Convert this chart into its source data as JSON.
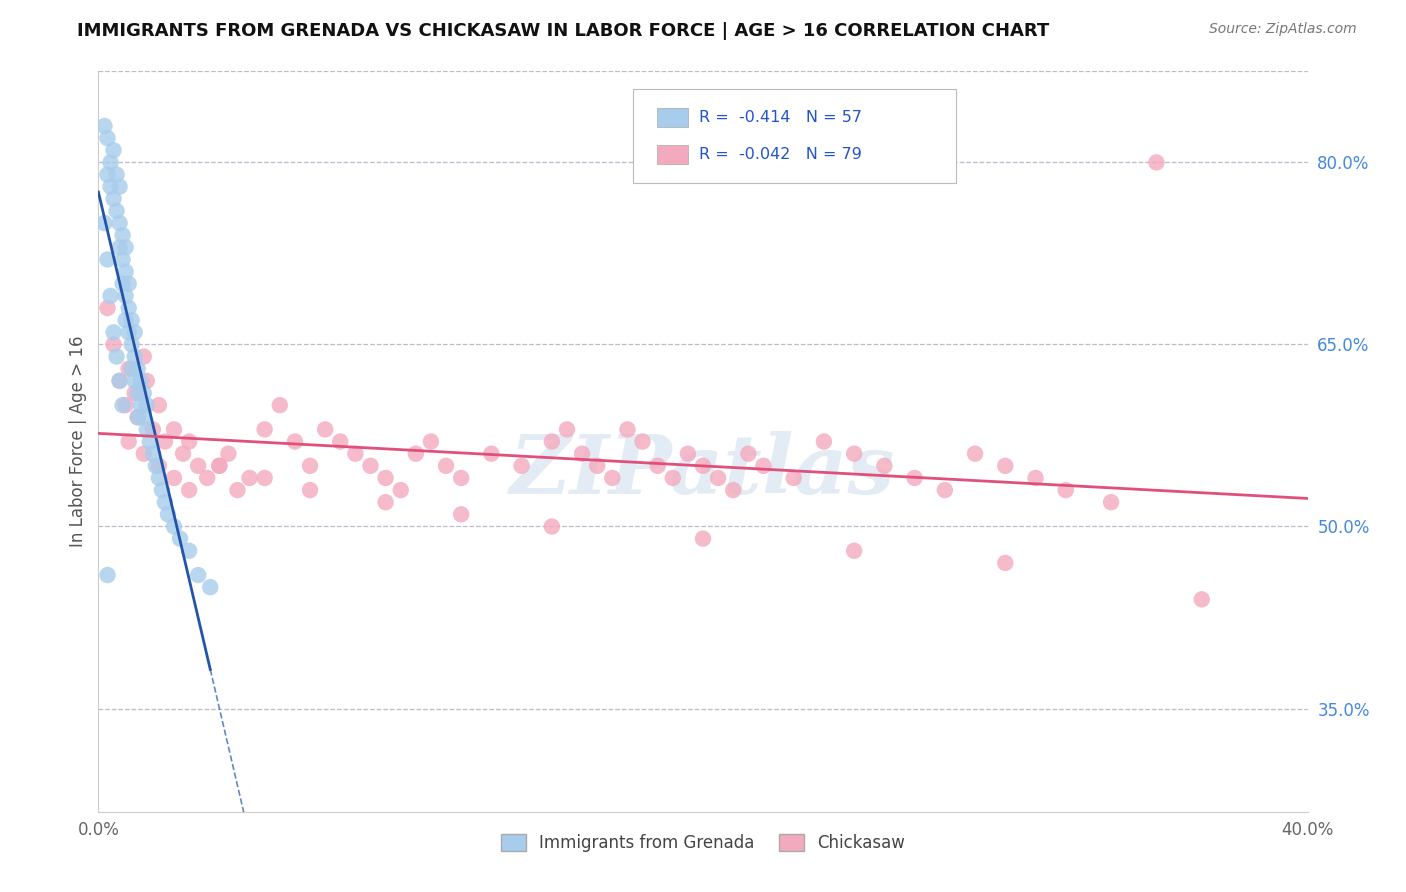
{
  "title": "IMMIGRANTS FROM GRENADA VS CHICKASAW IN LABOR FORCE | AGE > 16 CORRELATION CHART",
  "source_text": "Source: ZipAtlas.com",
  "ylabel": "In Labor Force | Age > 16",
  "x_min": 0.0,
  "x_max": 0.4,
  "y_min": 0.265,
  "y_max": 0.875,
  "y_tick_right_labels": [
    "35.0%",
    "50.0%",
    "65.0%",
    "80.0%"
  ],
  "y_tick_right_values": [
    0.35,
    0.5,
    0.65,
    0.8
  ],
  "watermark": "ZIPatlas",
  "legend_label1": "Immigrants from Grenada",
  "legend_label2": "Chickasaw",
  "r1": -0.414,
  "n1": 57,
  "r2": -0.042,
  "n2": 79,
  "color_blue": "#A8CCEC",
  "color_pink": "#F4AABE",
  "color_blue_line": "#2255AA",
  "color_pink_line": "#E0507A",
  "background_color": "#FFFFFF",
  "grid_color": "#CCCCCC",
  "blue_x": [
    0.002,
    0.003,
    0.003,
    0.004,
    0.004,
    0.005,
    0.005,
    0.006,
    0.006,
    0.007,
    0.007,
    0.007,
    0.008,
    0.008,
    0.008,
    0.009,
    0.009,
    0.009,
    0.009,
    0.01,
    0.01,
    0.01,
    0.011,
    0.011,
    0.011,
    0.012,
    0.012,
    0.012,
    0.013,
    0.013,
    0.013,
    0.014,
    0.014,
    0.015,
    0.015,
    0.016,
    0.016,
    0.017,
    0.018,
    0.019,
    0.02,
    0.021,
    0.022,
    0.023,
    0.025,
    0.027,
    0.03,
    0.033,
    0.037,
    0.002,
    0.003,
    0.004,
    0.005,
    0.006,
    0.007,
    0.008,
    0.003
  ],
  "blue_y": [
    0.83,
    0.79,
    0.82,
    0.8,
    0.78,
    0.81,
    0.77,
    0.79,
    0.76,
    0.78,
    0.75,
    0.73,
    0.74,
    0.72,
    0.7,
    0.73,
    0.71,
    0.69,
    0.67,
    0.7,
    0.68,
    0.66,
    0.67,
    0.65,
    0.63,
    0.66,
    0.64,
    0.62,
    0.63,
    0.61,
    0.59,
    0.62,
    0.6,
    0.61,
    0.59,
    0.6,
    0.58,
    0.57,
    0.56,
    0.55,
    0.54,
    0.53,
    0.52,
    0.51,
    0.5,
    0.49,
    0.48,
    0.46,
    0.45,
    0.75,
    0.72,
    0.69,
    0.66,
    0.64,
    0.62,
    0.6,
    0.46
  ],
  "pink_x": [
    0.003,
    0.005,
    0.007,
    0.009,
    0.01,
    0.012,
    0.013,
    0.015,
    0.016,
    0.018,
    0.02,
    0.022,
    0.025,
    0.028,
    0.03,
    0.033,
    0.036,
    0.04,
    0.043,
    0.046,
    0.05,
    0.055,
    0.06,
    0.065,
    0.07,
    0.075,
    0.08,
    0.085,
    0.09,
    0.095,
    0.1,
    0.105,
    0.11,
    0.115,
    0.12,
    0.13,
    0.14,
    0.15,
    0.155,
    0.16,
    0.165,
    0.17,
    0.175,
    0.18,
    0.185,
    0.19,
    0.195,
    0.2,
    0.205,
    0.21,
    0.215,
    0.22,
    0.23,
    0.24,
    0.25,
    0.26,
    0.27,
    0.28,
    0.29,
    0.3,
    0.31,
    0.32,
    0.335,
    0.01,
    0.015,
    0.02,
    0.025,
    0.03,
    0.04,
    0.055,
    0.07,
    0.095,
    0.12,
    0.15,
    0.2,
    0.25,
    0.3,
    0.35,
    0.365
  ],
  "pink_y": [
    0.68,
    0.65,
    0.62,
    0.6,
    0.63,
    0.61,
    0.59,
    0.64,
    0.62,
    0.58,
    0.6,
    0.57,
    0.58,
    0.56,
    0.57,
    0.55,
    0.54,
    0.55,
    0.56,
    0.53,
    0.54,
    0.58,
    0.6,
    0.57,
    0.55,
    0.58,
    0.57,
    0.56,
    0.55,
    0.54,
    0.53,
    0.56,
    0.57,
    0.55,
    0.54,
    0.56,
    0.55,
    0.57,
    0.58,
    0.56,
    0.55,
    0.54,
    0.58,
    0.57,
    0.55,
    0.54,
    0.56,
    0.55,
    0.54,
    0.53,
    0.56,
    0.55,
    0.54,
    0.57,
    0.56,
    0.55,
    0.54,
    0.53,
    0.56,
    0.55,
    0.54,
    0.53,
    0.52,
    0.57,
    0.56,
    0.55,
    0.54,
    0.53,
    0.55,
    0.54,
    0.53,
    0.52,
    0.51,
    0.5,
    0.49,
    0.48,
    0.47,
    0.8,
    0.44
  ]
}
